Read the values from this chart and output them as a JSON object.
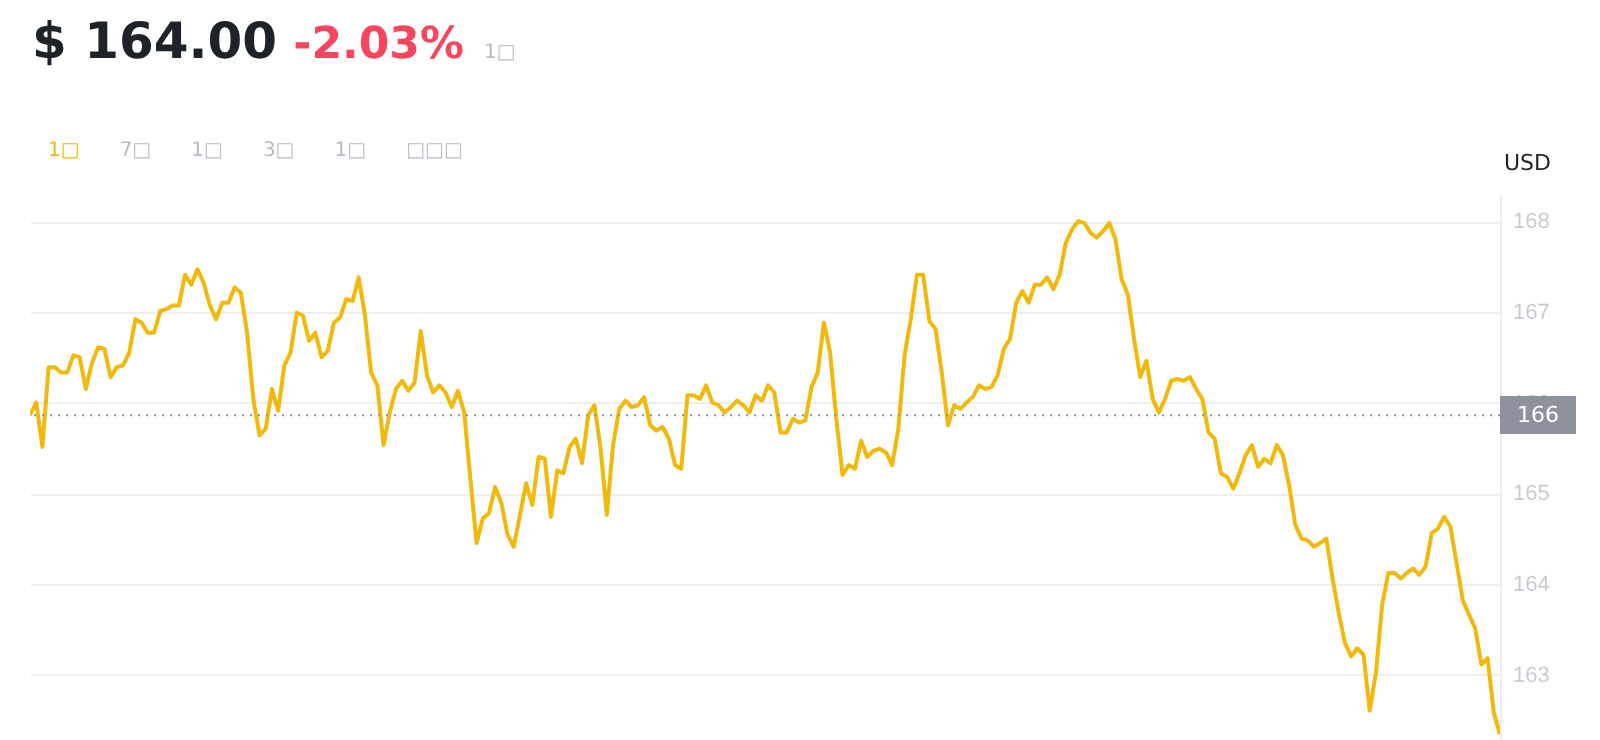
{
  "chart_data": {
    "type": "line",
    "title": "$ 164.00",
    "subtitle": "-2.03%",
    "ylabel": "USD",
    "annotations": [
      "1□",
      "1□",
      "7□",
      "1□",
      "3□",
      "1□",
      "□□□"
    ],
    "categories": [
      null,
      null,
      null,
      null,
      null,
      null,
      null,
      null,
      null,
      null,
      null,
      null,
      null,
      null,
      null,
      null,
      null,
      null,
      null,
      null,
      null,
      null,
      null,
      null,
      null,
      null,
      null,
      null,
      null,
      null,
      null,
      null,
      null,
      null,
      null,
      null,
      null,
      null,
      null,
      null,
      null,
      null,
      null,
      null,
      null,
      null,
      null,
      null,
      null,
      null,
      null,
      null,
      null,
      null,
      null,
      null,
      null,
      null,
      null,
      null,
      null,
      null,
      null,
      null,
      null,
      null,
      null,
      null,
      null,
      null,
      null,
      null,
      null,
      null,
      null,
      null,
      null,
      null,
      null,
      null,
      null,
      null,
      null,
      null,
      null,
      null,
      null,
      null,
      null,
      null,
      null,
      null,
      null,
      null,
      null,
      null,
      null,
      null,
      null,
      null,
      null,
      null,
      null,
      null,
      null,
      null,
      null,
      null,
      null,
      null,
      null,
      null,
      null,
      null,
      null,
      null,
      null,
      null,
      null,
      null,
      null,
      null,
      null,
      null,
      null,
      null,
      null,
      null,
      null,
      null,
      null,
      null,
      null,
      null,
      null,
      null,
      null,
      null,
      null,
      null,
      null,
      null,
      null,
      null,
      null,
      null,
      null,
      null,
      null,
      null,
      null,
      null,
      null,
      null,
      null,
      null,
      null,
      null,
      null,
      null,
      null,
      null,
      null,
      null,
      null,
      null,
      null,
      null,
      null,
      null,
      null,
      null,
      null,
      null,
      null,
      null,
      null,
      null,
      null,
      null,
      null,
      null,
      null,
      null,
      null,
      null,
      null,
      null,
      null,
      null,
      null,
      null,
      null,
      null,
      null,
      null,
      null,
      null,
      null,
      null,
      null,
      null,
      null,
      null,
      null,
      null,
      null,
      null,
      null,
      null,
      null,
      null,
      null,
      null,
      null,
      null,
      null,
      null,
      null,
      null,
      null,
      null,
      null,
      null,
      null,
      null,
      null,
      null,
      null,
      null,
      null,
      null,
      null,
      null,
      null,
      null,
      null,
      null
    ],
    "series": [
      {
        "color": "#f0b90b",
        "values": [
          165.86,
          166.0,
          165.51,
          166.39,
          166.39,
          166.33,
          166.33,
          166.52,
          166.5,
          166.15,
          166.44,
          166.61,
          166.59,
          166.28,
          166.39,
          166.41,
          166.55,
          166.92,
          166.88,
          166.77,
          166.77,
          167.01,
          167.03,
          167.07,
          167.07,
          167.41,
          167.3,
          167.47,
          167.32,
          167.07,
          166.92,
          167.1,
          167.1,
          167.27,
          167.21,
          166.77,
          166.04,
          165.64,
          165.71,
          166.15,
          165.91,
          166.41,
          166.55,
          166.99,
          166.96,
          166.68,
          166.77,
          166.5,
          166.57,
          166.88,
          166.94,
          167.14,
          167.12,
          167.38,
          166.96,
          166.33,
          166.19,
          165.53,
          165.89,
          166.15,
          166.24,
          166.13,
          166.22,
          166.79,
          166.3,
          166.11,
          166.19,
          166.11,
          165.95,
          166.13,
          165.89,
          165.16,
          164.45,
          164.72,
          164.78,
          165.07,
          164.89,
          164.54,
          164.41,
          164.76,
          165.11,
          164.87,
          165.4,
          165.38,
          164.74,
          165.25,
          165.22,
          165.51,
          165.6,
          165.33,
          165.86,
          165.97,
          165.49,
          164.76,
          165.53,
          165.93,
          166.02,
          165.95,
          165.97,
          166.06,
          165.75,
          165.69,
          165.73,
          165.6,
          165.31,
          165.27,
          166.08,
          166.08,
          166.04,
          166.19,
          166.0,
          165.97,
          165.89,
          165.95,
          166.02,
          165.97,
          165.89,
          166.08,
          166.02,
          166.19,
          166.11,
          165.67,
          165.67,
          165.82,
          165.78,
          165.8,
          166.17,
          166.33,
          166.88,
          166.55,
          165.82,
          165.2,
          165.31,
          165.27,
          165.58,
          165.4,
          165.47,
          165.49,
          165.45,
          165.31,
          165.71,
          166.52,
          166.92,
          167.41,
          167.41,
          166.9,
          166.81,
          166.33,
          165.75,
          165.97,
          165.93,
          166.0,
          166.06,
          166.19,
          166.15,
          166.17,
          166.3,
          166.59,
          166.7,
          167.1,
          167.23,
          167.1,
          167.3,
          167.3,
          167.38,
          167.25,
          167.41,
          167.76,
          167.91,
          168.0,
          167.98,
          167.87,
          167.82,
          167.89,
          167.98,
          167.8,
          167.36,
          167.19,
          166.7,
          166.28,
          166.46,
          166.04,
          165.89,
          166.04,
          166.24,
          166.26,
          166.24,
          166.28,
          166.15,
          166.04,
          165.67,
          165.6,
          165.22,
          165.18,
          165.05,
          165.22,
          165.42,
          165.53,
          165.29,
          165.38,
          165.33,
          165.53,
          165.42,
          165.09,
          164.65,
          164.5,
          164.48,
          164.41,
          164.45,
          164.5,
          164.06,
          163.68,
          163.35,
          163.2,
          163.29,
          163.22,
          162.6,
          163.02,
          163.77,
          164.12,
          164.12,
          164.06,
          164.12,
          164.17,
          164.1,
          164.19,
          164.56,
          164.61,
          164.74,
          164.63,
          164.23,
          163.82,
          163.66,
          163.51,
          163.11,
          163.18,
          162.58,
          162.34
        ]
      }
    ],
    "ylim": [
      162.3,
      168.3
    ],
    "yticks": [
      163,
      164,
      165,
      166,
      167,
      168
    ],
    "grid": "y",
    "ref_lines": [
      {
        "axis": "y",
        "value": 165.86,
        "label": "166",
        "color": "#8e929c",
        "line_style": "dotted"
      }
    ]
  }
}
